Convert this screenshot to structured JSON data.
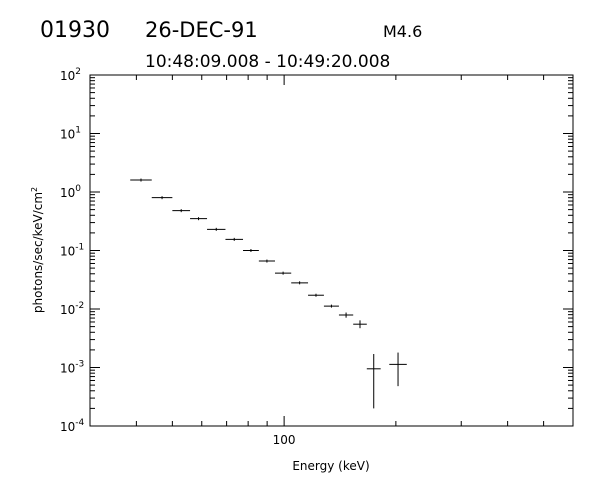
{
  "header": {
    "event_id": "01930",
    "date": "26-DEC-91",
    "goes_class": "M4.6",
    "time_range": "10:48:09.008 - 10:49:20.008"
  },
  "chart_data": {
    "type": "scatter",
    "title": "",
    "xlabel": "Energy (keV)",
    "ylabel_text": "photons/sec/keV/cm",
    "ylabel_superscript": "2",
    "xscale": "log",
    "yscale": "log",
    "xlim": [
      30,
      600
    ],
    "ylim": [
      0.0001,
      100
    ],
    "x_ticks": [
      {
        "value": 100,
        "label": "100"
      }
    ],
    "y_ticks": [
      {
        "value": 0.0001,
        "base": "10",
        "exp": "-4"
      },
      {
        "value": 0.001,
        "base": "10",
        "exp": "-3"
      },
      {
        "value": 0.01,
        "base": "10",
        "exp": "-2"
      },
      {
        "value": 0.1,
        "base": "10",
        "exp": "-1"
      },
      {
        "value": 1,
        "base": "10",
        "exp": "0"
      },
      {
        "value": 10,
        "base": "10",
        "exp": "1"
      },
      {
        "value": 100,
        "base": "10",
        "exp": "2"
      }
    ],
    "grid": false,
    "legend": "none",
    "points": [
      {
        "x_lo": 38.5,
        "x_hi": 44.0,
        "y": 1.6
      },
      {
        "x_lo": 44.0,
        "x_hi": 50.0,
        "y": 0.8
      },
      {
        "x_lo": 50.0,
        "x_hi": 55.8,
        "y": 0.48
      },
      {
        "x_lo": 55.8,
        "x_hi": 62.0,
        "y": 0.35
      },
      {
        "x_lo": 62.0,
        "x_hi": 69.5,
        "y": 0.23
      },
      {
        "x_lo": 69.5,
        "x_hi": 77.5,
        "y": 0.155
      },
      {
        "x_lo": 77.5,
        "x_hi": 85.5,
        "y": 0.1
      },
      {
        "x_lo": 85.5,
        "x_hi": 94.5,
        "y": 0.066
      },
      {
        "x_lo": 94.5,
        "x_hi": 104.5,
        "y": 0.041
      },
      {
        "x_lo": 104.5,
        "x_hi": 116.0,
        "y": 0.028
      },
      {
        "x_lo": 116.0,
        "x_hi": 128.0,
        "y": 0.0172
      },
      {
        "x_lo": 128.0,
        "x_hi": 140.5,
        "y": 0.0112
      },
      {
        "x_lo": 140.5,
        "x_hi": 153.5,
        "y": 0.0079,
        "y_lo": 0.0071,
        "y_hi": 0.0087
      },
      {
        "x_lo": 153.5,
        "x_hi": 167.0,
        "y": 0.0055,
        "y_lo": 0.0047,
        "y_hi": 0.0064
      },
      {
        "x_lo": 167.0,
        "x_hi": 182.0,
        "y": 0.00095,
        "y_lo": 0.0002,
        "y_hi": 0.0017
      },
      {
        "x_lo": 192.0,
        "x_hi": 214.0,
        "y": 0.00113,
        "y_lo": 0.00048,
        "y_hi": 0.0018
      }
    ]
  }
}
